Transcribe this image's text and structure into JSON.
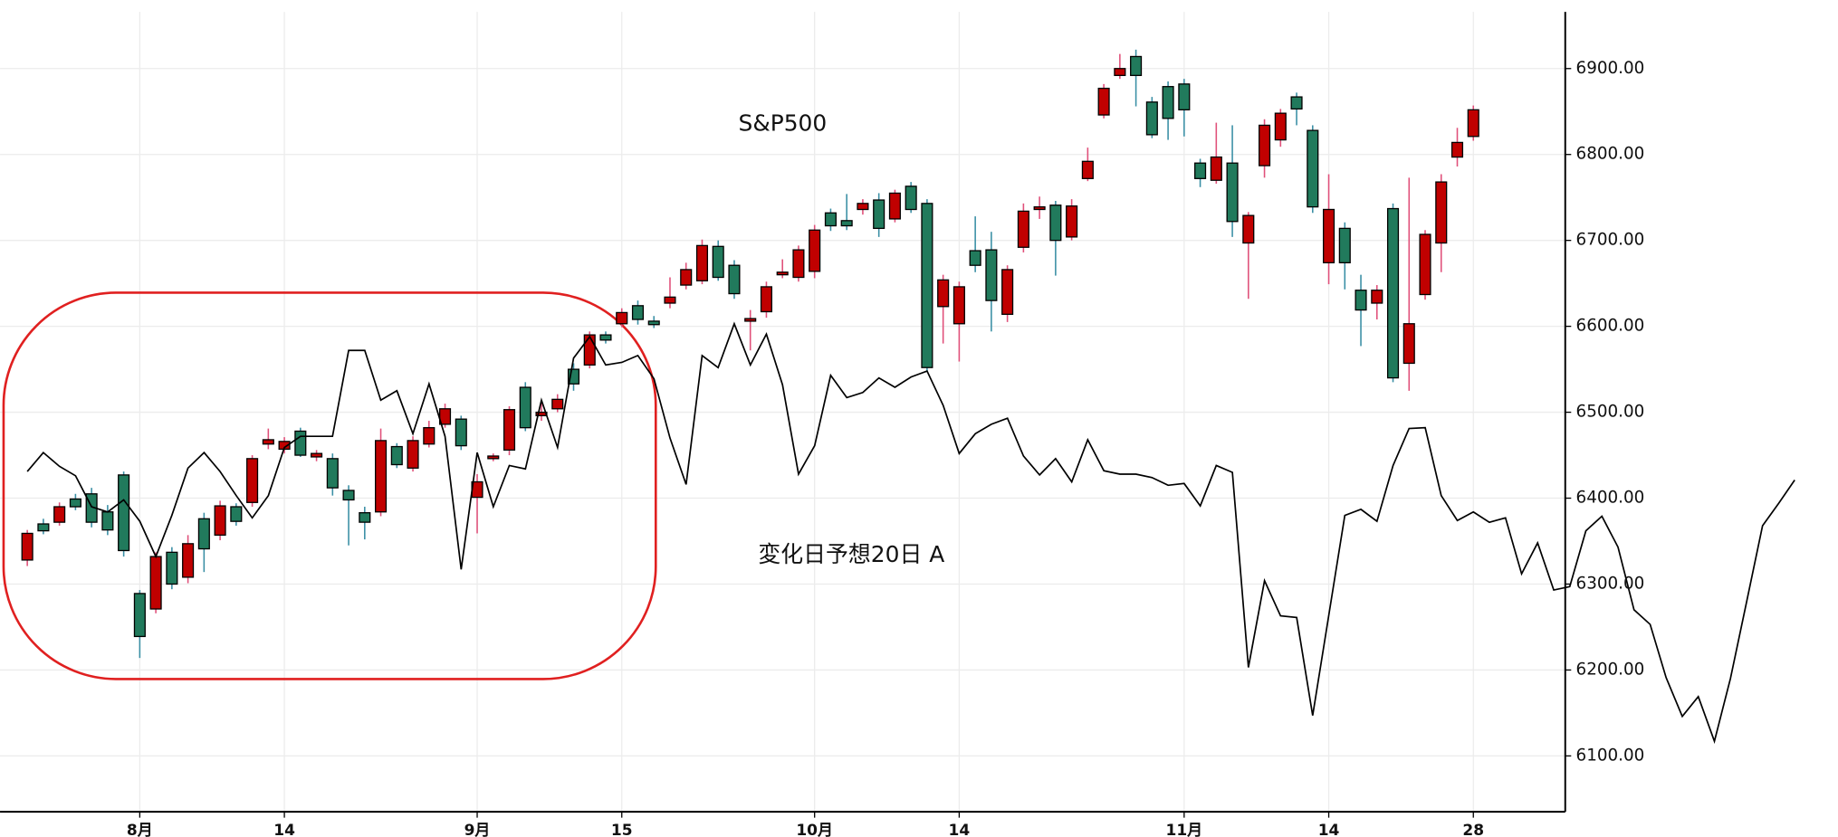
{
  "chart_data": {
    "type": "candlestick",
    "grid": true,
    "ylim": [
      6035,
      6966
    ],
    "yticks": [
      {
        "value": 6100,
        "label": "6100.00"
      },
      {
        "value": 6200,
        "label": "6200.00"
      },
      {
        "value": 6300,
        "label": "6300.00"
      },
      {
        "value": 6400,
        "label": "6400.00"
      },
      {
        "value": 6500,
        "label": "6500.00"
      },
      {
        "value": 6600,
        "label": "6600.00"
      },
      {
        "value": 6700,
        "label": "6700.00"
      },
      {
        "value": 6800,
        "label": "6800.00"
      },
      {
        "value": 6900,
        "label": "6900.00"
      }
    ],
    "categories": [
      null,
      null,
      null,
      null,
      null,
      null,
      null,
      "8月",
      null,
      null,
      null,
      null,
      null,
      null,
      null,
      null,
      "14",
      null,
      null,
      null,
      null,
      null,
      null,
      null,
      null,
      null,
      null,
      null,
      "9月",
      null,
      null,
      null,
      null,
      null,
      null,
      null,
      null,
      "15",
      null,
      null,
      null,
      null,
      null,
      null,
      null,
      null,
      null,
      null,
      null,
      "10月",
      null,
      null,
      null,
      null,
      null,
      null,
      null,
      null,
      "14",
      null,
      null,
      null,
      null,
      null,
      null,
      null,
      null,
      null,
      null,
      null,
      null,
      null,
      "11月",
      null,
      null,
      null,
      null,
      null,
      null,
      null,
      null,
      "14",
      null,
      null,
      null,
      null,
      null,
      null,
      null,
      null,
      "28",
      null,
      null,
      null,
      null,
      null,
      null,
      null,
      null,
      null,
      null,
      null,
      null,
      null,
      null,
      null,
      null,
      null,
      null,
      null,
      null
    ],
    "ohlc": {
      "name": "S&P500",
      "up_color": "#c00000",
      "down_color": "#217a5c",
      "up_wick_color": "#e0507a",
      "down_wick_color": "#3a8fa5",
      "open": [
        6328,
        6370,
        6372,
        6399,
        6405,
        6384,
        6427,
        6289,
        6271,
        6337,
        6308,
        6376,
        6357,
        6390,
        6395,
        6463,
        6457,
        6478,
        6448,
        6446,
        6409,
        6383,
        6384,
        6460,
        6435,
        6463,
        6486,
        6492,
        6401,
        6446,
        6456,
        6529,
        6496,
        6504,
        6550,
        6555,
        6590,
        6603,
        6624,
        6606,
        6627,
        6648,
        6653,
        6693,
        6671,
        6606,
        6617,
        6660,
        6657,
        6664,
        6732,
        6723,
        6736,
        6747,
        6725,
        6763,
        6743,
        6623,
        6603,
        6688,
        6689,
        6614,
        6692,
        6736,
        6741,
        6704,
        6772,
        6846,
        6892,
        6914,
        6861,
        6879,
        6882,
        6790,
        6770,
        6790,
        6697,
        6787,
        6817,
        6867,
        6828,
        6674,
        6714,
        6642,
        6627,
        6737,
        6557,
        6637,
        6697,
        6797,
        6821,
        null,
        null,
        null,
        null,
        null,
        null,
        null,
        null,
        null,
        null,
        null,
        null,
        null,
        null,
        null,
        null,
        null,
        null,
        null,
        null
      ],
      "high": [
        6363,
        6376,
        6395,
        6405,
        6412,
        6392,
        6431,
        6293,
        6337,
        6343,
        6357,
        6383,
        6397,
        6394,
        6450,
        6481,
        6471,
        6482,
        6456,
        6452,
        6415,
        6390,
        6481,
        6464,
        6472,
        6490,
        6510,
        6496,
        6428,
        6452,
        6507,
        6535,
        6511,
        6521,
        6557,
        6594,
        6594,
        6621,
        6630,
        6612,
        6657,
        6674,
        6701,
        6700,
        6677,
        6619,
        6652,
        6678,
        6694,
        6718,
        6737,
        6754,
        6748,
        6755,
        6759,
        6768,
        6748,
        6660,
        6652,
        6728,
        6710,
        6671,
        6743,
        6751,
        6746,
        6748,
        6808,
        6882,
        6917,
        6922,
        6867,
        6885,
        6888,
        6795,
        6837,
        6834,
        6733,
        6841,
        6853,
        6872,
        6834,
        6777,
        6721,
        6660,
        6648,
        6743,
        6773,
        6712,
        6777,
        6831,
        6857,
        null,
        null,
        null,
        null,
        null,
        null,
        null,
        null,
        null,
        null,
        null,
        null,
        null,
        null,
        null,
        null,
        null,
        null,
        null,
        null
      ],
      "low": [
        6321,
        6358,
        6368,
        6386,
        6366,
        6357,
        6332,
        6214,
        6266,
        6294,
        6301,
        6314,
        6351,
        6368,
        6390,
        6457,
        6452,
        6448,
        6443,
        6403,
        6345,
        6352,
        6379,
        6435,
        6431,
        6459,
        6482,
        6456,
        6359,
        6443,
        6450,
        6478,
        6490,
        6500,
        6525,
        6551,
        6580,
        6599,
        6602,
        6598,
        6621,
        6643,
        6649,
        6653,
        6632,
        6572,
        6610,
        6656,
        6652,
        6656,
        6711,
        6712,
        6730,
        6704,
        6721,
        6732,
        6548,
        6580,
        6559,
        6663,
        6594,
        6605,
        6686,
        6725,
        6659,
        6700,
        6769,
        6842,
        6888,
        6856,
        6819,
        6817,
        6821,
        6762,
        6766,
        6704,
        6632,
        6773,
        6809,
        6834,
        6732,
        6649,
        6643,
        6577,
        6608,
        6535,
        6525,
        6631,
        6663,
        6786,
        6816,
        null,
        null,
        null,
        null,
        null,
        null,
        null,
        null,
        null,
        null,
        null,
        null,
        null,
        null,
        null,
        null,
        null,
        null,
        null,
        null
      ],
      "close": [
        6359,
        6362,
        6390,
        6390,
        6372,
        6363,
        6339,
        6239,
        6332,
        6300,
        6347,
        6341,
        6391,
        6373,
        6446,
        6468,
        6466,
        6450,
        6452,
        6412,
        6398,
        6372,
        6467,
        6439,
        6467,
        6482,
        6504,
        6461,
        6419,
        6449,
        6503,
        6482,
        6500,
        6515,
        6533,
        6590,
        6584,
        6616,
        6608,
        6602,
        6634,
        6666,
        6694,
        6657,
        6638,
        6609,
        6646,
        6663,
        6689,
        6712,
        6717,
        6717,
        6743,
        6714,
        6755,
        6736,
        6552,
        6654,
        6646,
        6671,
        6630,
        6666,
        6734,
        6739,
        6700,
        6740,
        6792,
        6877,
        6900,
        6892,
        6823,
        6842,
        6852,
        6772,
        6797,
        6722,
        6729,
        6834,
        6848,
        6853,
        6739,
        6736,
        6674,
        6619,
        6642,
        6540,
        6603,
        6707,
        6768,
        6814,
        6852,
        null,
        null,
        null,
        null,
        null,
        null,
        null,
        null,
        null,
        null,
        null,
        null,
        null,
        null,
        null,
        null,
        null,
        null,
        null,
        null
      ]
    },
    "line": {
      "name": "変化日予想20日 A",
      "color": "#000000",
      "values": [
        6431,
        6453,
        6437,
        6426,
        6390,
        6384,
        6398,
        6373,
        6332,
        6380,
        6435,
        6453,
        6431,
        6403,
        6377,
        6403,
        6459,
        6472,
        6472,
        6472,
        6572,
        6572,
        6514,
        6525,
        6475,
        6533,
        6472,
        6317,
        6453,
        6390,
        6438,
        6434,
        6514,
        6459,
        6563,
        6588,
        6555,
        6558,
        6566,
        6539,
        6470,
        6416,
        6566,
        6552,
        6603,
        6555,
        6591,
        6532,
        6428,
        6461,
        6543,
        6517,
        6523,
        6540,
        6529,
        6541,
        6548,
        6508,
        6452,
        6475,
        6486,
        6493,
        6449,
        6427,
        6446,
        6419,
        6468,
        6432,
        6428,
        6428,
        6424,
        6415,
        6417,
        6391,
        6438,
        6430,
        6203,
        6304,
        6263,
        6261,
        6147,
        6263,
        6380,
        6387,
        6373,
        6438,
        6481,
        6482,
        6403,
        6374,
        6384,
        6372,
        6377,
        6312,
        6348,
        6293,
        6297,
        6362,
        6379,
        6343,
        6270,
        6253,
        6191,
        6146,
        6169,
        6117,
        6190,
        6279,
        6368,
        6394,
        6421
      ]
    }
  }
}
